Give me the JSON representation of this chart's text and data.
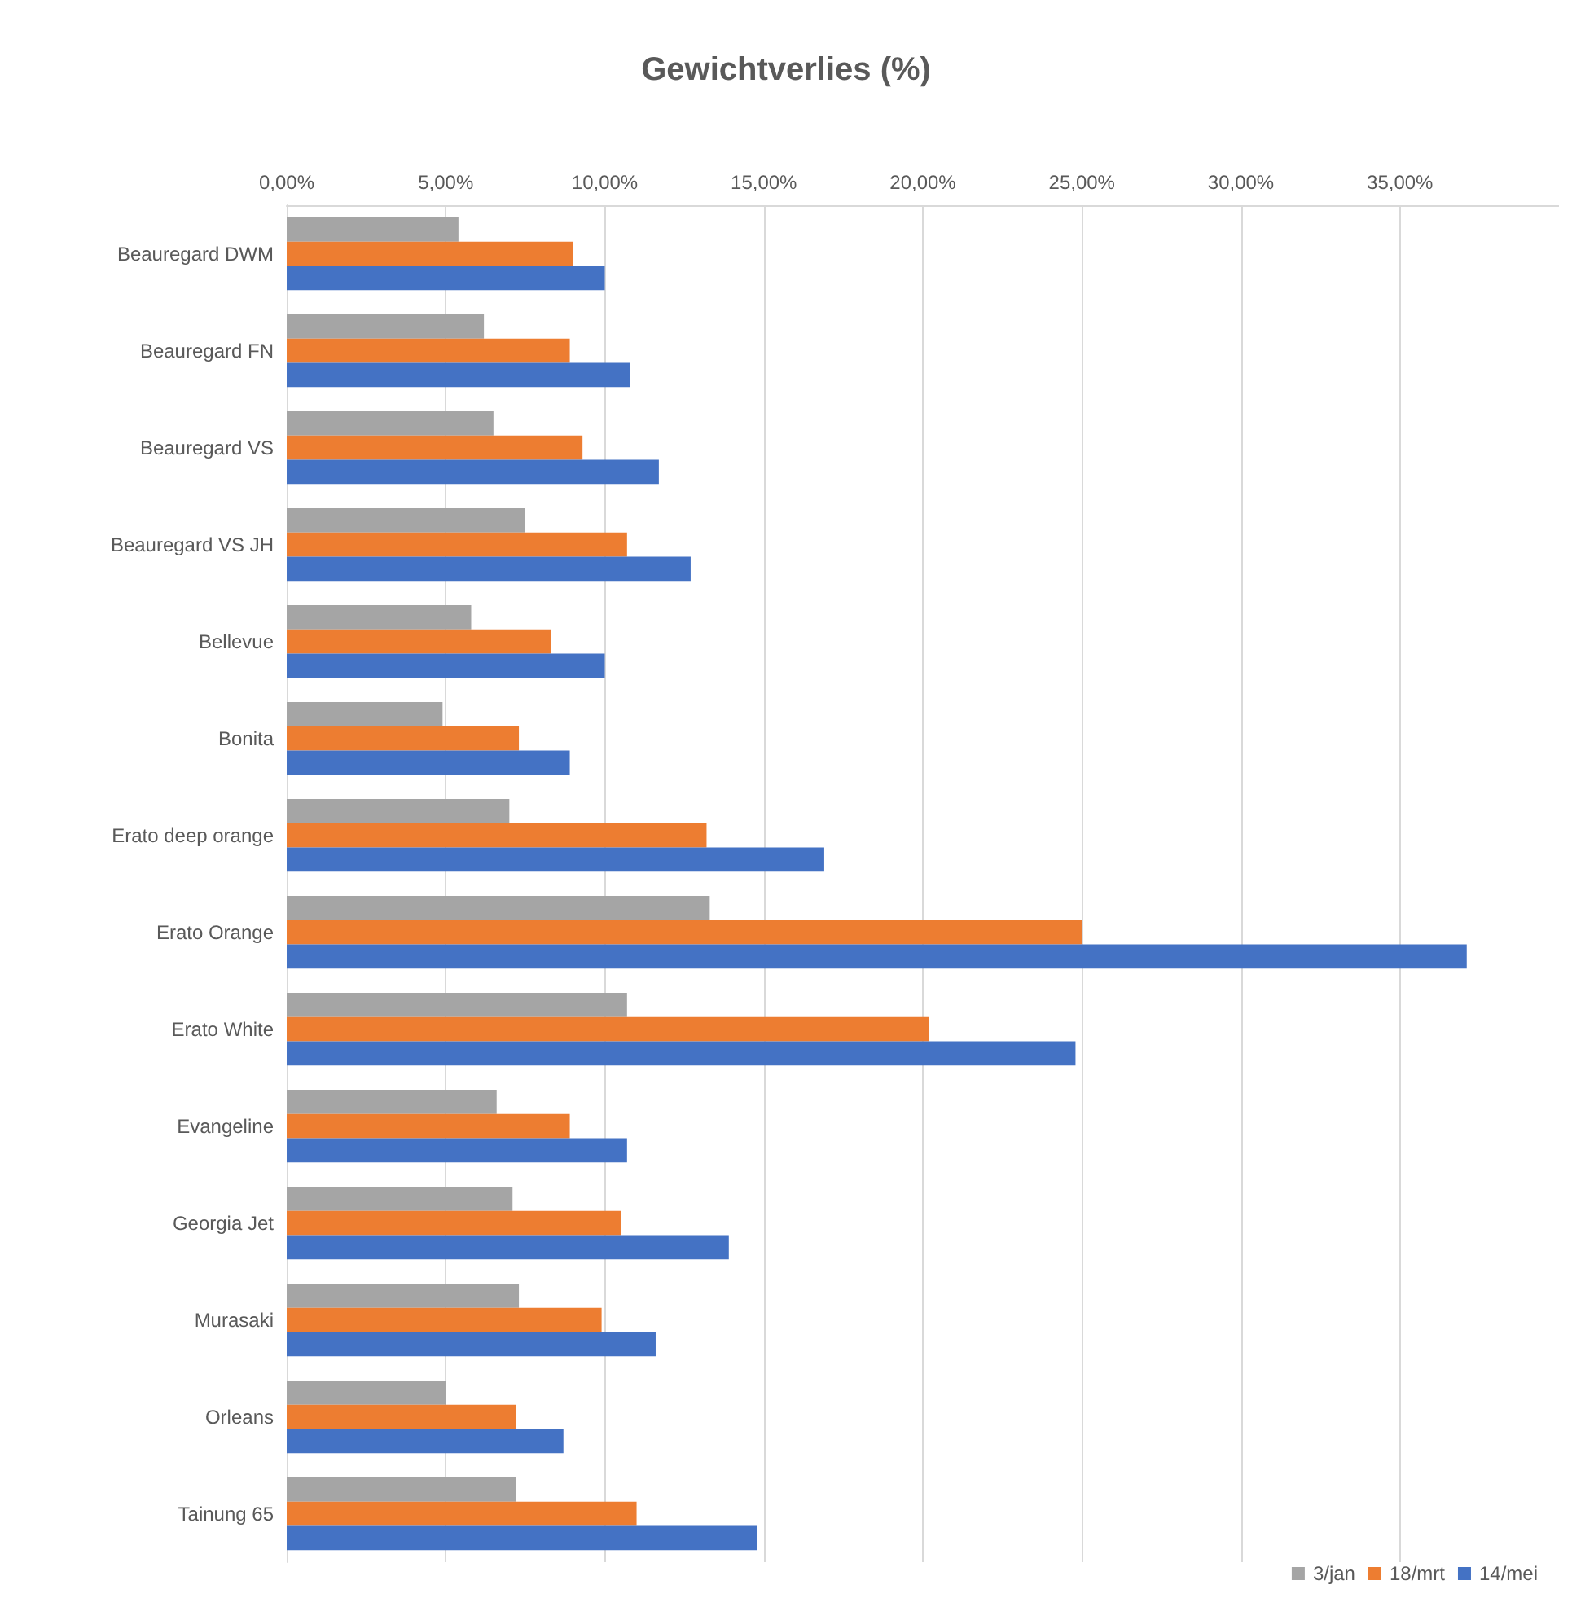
{
  "chart_data": {
    "type": "bar",
    "orientation": "horizontal",
    "title": "Gewichtverlies (%)",
    "categories": [
      "Beauregard DWM",
      "Beauregard FN",
      "Beauregard VS",
      "Beauregard VS JH",
      "Bellevue",
      "Bonita",
      "Erato deep orange",
      "Erato Orange",
      "Erato White",
      "Evangeline",
      "Georgia Jet",
      "Murasaki",
      "Orleans",
      "Tainung 65"
    ],
    "series": [
      {
        "name": "3/jan",
        "color": "#a5a5a5",
        "values": [
          5.4,
          6.2,
          6.5,
          7.5,
          5.8,
          4.9,
          7.0,
          13.3,
          10.7,
          6.6,
          7.1,
          7.3,
          5.0,
          7.2
        ]
      },
      {
        "name": "18/mrt",
        "color": "#ed7d31",
        "values": [
          9.0,
          8.9,
          9.3,
          10.7,
          8.3,
          7.3,
          13.2,
          25.0,
          20.2,
          8.9,
          10.5,
          9.9,
          7.2,
          11.0
        ]
      },
      {
        "name": "14/mei",
        "color": "#4472c4",
        "values": [
          10.0,
          10.8,
          11.7,
          12.7,
          10.0,
          8.9,
          16.9,
          37.1,
          24.8,
          10.7,
          13.9,
          11.6,
          8.7,
          14.8
        ]
      }
    ],
    "xlim": [
      0,
      40
    ],
    "xticks": [
      {
        "value": 0,
        "label": "0,00%"
      },
      {
        "value": 5,
        "label": "5,00%"
      },
      {
        "value": 10,
        "label": "10,00%"
      },
      {
        "value": 15,
        "label": "15,00%"
      },
      {
        "value": 20,
        "label": "20,00%"
      },
      {
        "value": 25,
        "label": "25,00%"
      },
      {
        "value": 30,
        "label": "30,00%"
      },
      {
        "value": 35,
        "label": "35,00%"
      }
    ],
    "grid": "x",
    "legend": "bottom right"
  }
}
